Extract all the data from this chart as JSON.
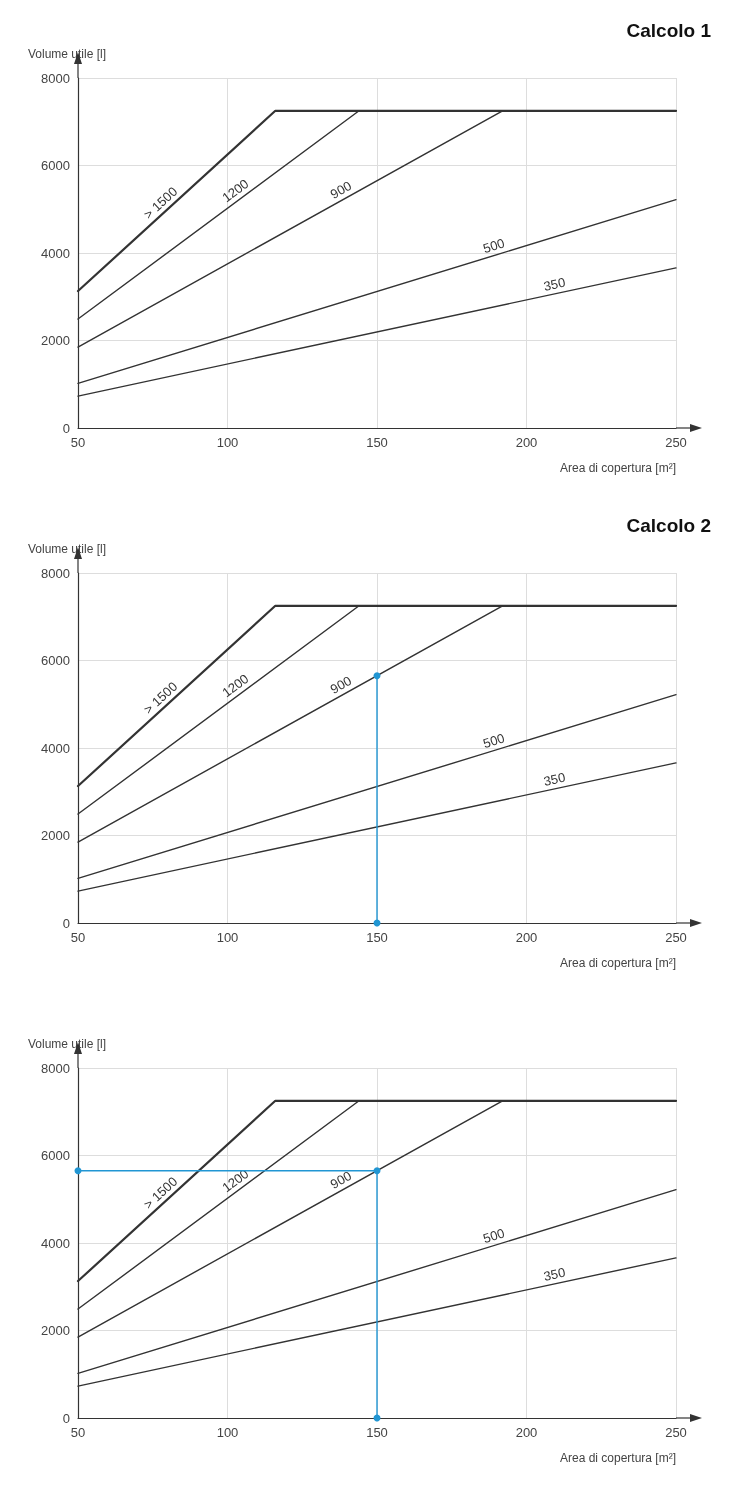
{
  "chart_data": [
    {
      "type": "line",
      "title": "Calcolo 1",
      "xlabel": "Area di copertura [m²]",
      "ylabel": "Volume utile [l]",
      "xlim": [
        50,
        250
      ],
      "ylim": [
        0,
        8000
      ],
      "xticks": [
        50,
        100,
        150,
        200,
        250
      ],
      "yticks": [
        0,
        2000,
        4000,
        6000,
        8000
      ],
      "grid": true,
      "marker": "none",
      "line_style": "solid",
      "series": [
        {
          "name": "> 1500",
          "color": "#333333",
          "x": [
            50,
            116,
            250
          ],
          "values": [
            3130,
            7250,
            7250
          ]
        },
        {
          "name": "1200",
          "color": "#333333",
          "x": [
            50,
            144,
            250
          ],
          "values": [
            2490,
            7250,
            7250
          ]
        },
        {
          "name": "900",
          "color": "#333333",
          "x": [
            50,
            192,
            250
          ],
          "values": [
            1850,
            7250,
            7250
          ]
        },
        {
          "name": "500",
          "color": "#333333",
          "x": [
            50,
            250
          ],
          "values": [
            1020,
            5220
          ]
        },
        {
          "name": "350",
          "color": "#333333",
          "x": [
            50,
            250
          ],
          "values": [
            730,
            3660
          ]
        }
      ]
    },
    {
      "type": "line",
      "title": "Calcolo 2",
      "xlabel": "Area di copertura [m²]",
      "ylabel": "Volume utile [l]",
      "xlim": [
        50,
        250
      ],
      "ylim": [
        0,
        8000
      ],
      "xticks": [
        50,
        100,
        150,
        200,
        250
      ],
      "yticks": [
        0,
        2000,
        4000,
        6000,
        8000
      ],
      "grid": true,
      "marker": "none",
      "line_style": "solid",
      "series": [
        {
          "name": "> 1500",
          "color": "#333333",
          "x": [
            50,
            116,
            250
          ],
          "values": [
            3130,
            7250,
            7250
          ]
        },
        {
          "name": "1200",
          "color": "#333333",
          "x": [
            50,
            144,
            250
          ],
          "values": [
            2490,
            7250,
            7250
          ]
        },
        {
          "name": "900",
          "color": "#333333",
          "x": [
            50,
            192,
            250
          ],
          "values": [
            1850,
            7250,
            7250
          ]
        },
        {
          "name": "500",
          "color": "#333333",
          "x": [
            50,
            250
          ],
          "values": [
            1020,
            5220
          ]
        },
        {
          "name": "350",
          "color": "#333333",
          "x": [
            50,
            250
          ],
          "values": [
            730,
            3660
          ]
        },
        {
          "color": "#2196d3",
          "marker": "circle",
          "x": [
            150,
            150
          ],
          "values": [
            5650,
            0
          ]
        }
      ]
    },
    {
      "type": "line",
      "xlabel": "Area di copertura [m²]",
      "ylabel": "Volume utile [l]",
      "xlim": [
        50,
        250
      ],
      "ylim": [
        0,
        8000
      ],
      "xticks": [
        50,
        100,
        150,
        200,
        250
      ],
      "yticks": [
        0,
        2000,
        4000,
        6000,
        8000
      ],
      "grid": true,
      "marker": "none",
      "line_style": "solid",
      "series": [
        {
          "name": "> 1500",
          "color": "#333333",
          "x": [
            50,
            116,
            250
          ],
          "values": [
            3130,
            7250,
            7250
          ]
        },
        {
          "name": "1200",
          "color": "#333333",
          "x": [
            50,
            144,
            250
          ],
          "values": [
            2490,
            7250,
            7250
          ]
        },
        {
          "name": "900",
          "color": "#333333",
          "x": [
            50,
            192,
            250
          ],
          "values": [
            1850,
            7250,
            7250
          ]
        },
        {
          "name": "500",
          "color": "#333333",
          "x": [
            50,
            250
          ],
          "values": [
            1020,
            5220
          ]
        },
        {
          "name": "350",
          "color": "#333333",
          "x": [
            50,
            250
          ],
          "values": [
            730,
            3660
          ]
        },
        {
          "color": "#2196d3",
          "marker": "circle",
          "x": [
            50,
            150,
            150
          ],
          "values": [
            5650,
            5650,
            0
          ]
        }
      ]
    }
  ]
}
